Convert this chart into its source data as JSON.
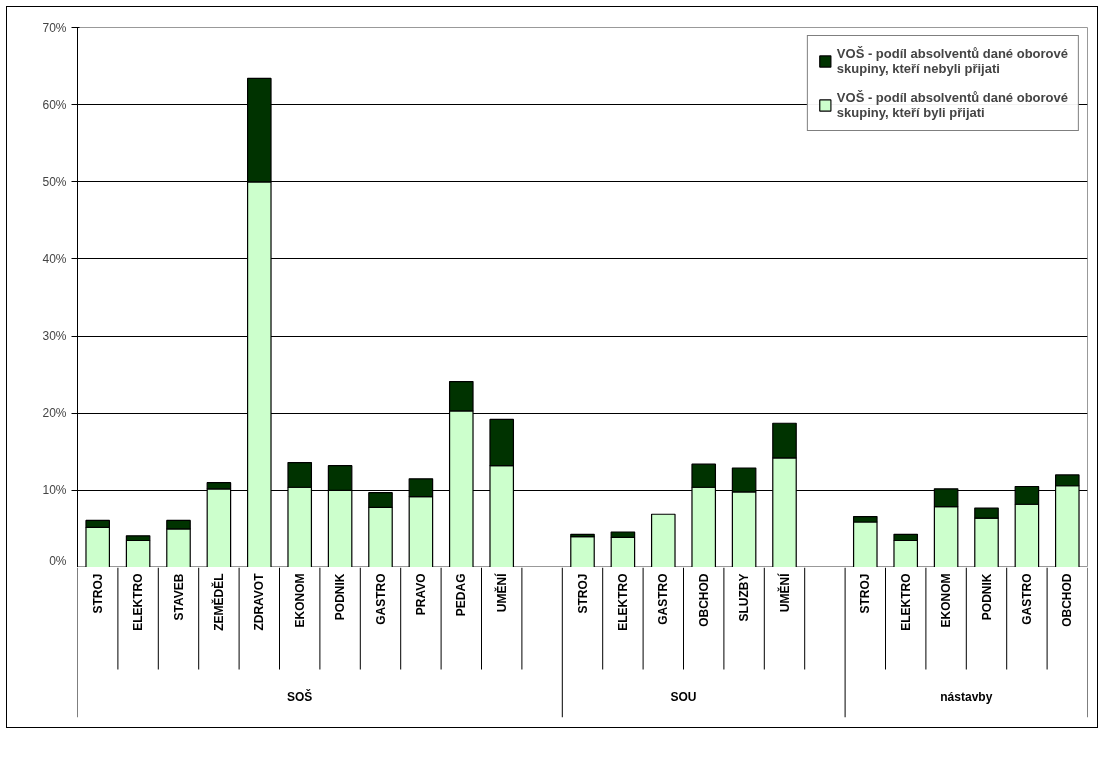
{
  "chart_data": {
    "type": "bar",
    "stacked": true,
    "categories": [
      "STROJ",
      "ELEKTRO",
      "STAVEB",
      "ZEMĚDĚL",
      "ZDRAVOT",
      "EKONOM",
      "PODNIK",
      "GASTRO",
      "PRAVO",
      "PEDAG",
      "UMĚNÍ",
      null,
      "STROJ",
      "ELEKTRO",
      "GASTRO",
      "OBCHOD",
      "SLUZBY",
      "UMĚNÍ",
      null,
      "STROJ",
      "ELEKTRO",
      "EKONOM",
      "PODNIK",
      "GASTRO",
      "OBCHOD"
    ],
    "series": [
      {
        "name": "VOŠ - podíl absolventů dané oborové skupiny, kteří byli přijati",
        "color": "#ccffcc",
        "values": [
          5.2,
          3.5,
          5.0,
          10.2,
          50.0,
          10.4,
          10.0,
          7.8,
          9.2,
          20.3,
          13.2,
          null,
          4.0,
          3.9,
          6.9,
          10.4,
          9.8,
          14.2,
          null,
          5.9,
          3.5,
          7.9,
          6.4,
          8.2,
          10.6
        ]
      },
      {
        "name": "VOŠ - podíl absolventů dané oborové skupiny, kteří nebyli přijati",
        "color": "#003300",
        "values": [
          0.9,
          0.6,
          1.1,
          0.8,
          13.4,
          3.2,
          3.2,
          1.9,
          2.3,
          3.8,
          6.0,
          null,
          0.3,
          0.7,
          0,
          3.0,
          3.1,
          4.5,
          null,
          0.7,
          0.8,
          2.3,
          1.3,
          2.3,
          1.4
        ]
      }
    ],
    "ylim": [
      0,
      70
    ],
    "yticks": [
      {
        "value": 0,
        "label": "0%"
      },
      {
        "value": 10,
        "label": "10%"
      },
      {
        "value": 20,
        "label": "20%"
      },
      {
        "value": 30,
        "label": "30%"
      },
      {
        "value": 40,
        "label": "40%"
      },
      {
        "value": 50,
        "label": "50%"
      },
      {
        "value": 60,
        "label": "60%"
      },
      {
        "value": 70,
        "label": "70%"
      }
    ],
    "grid": "y",
    "legend": "top right",
    "annotations": [
      "SOŠ",
      "SOU",
      "nástavby"
    ]
  }
}
